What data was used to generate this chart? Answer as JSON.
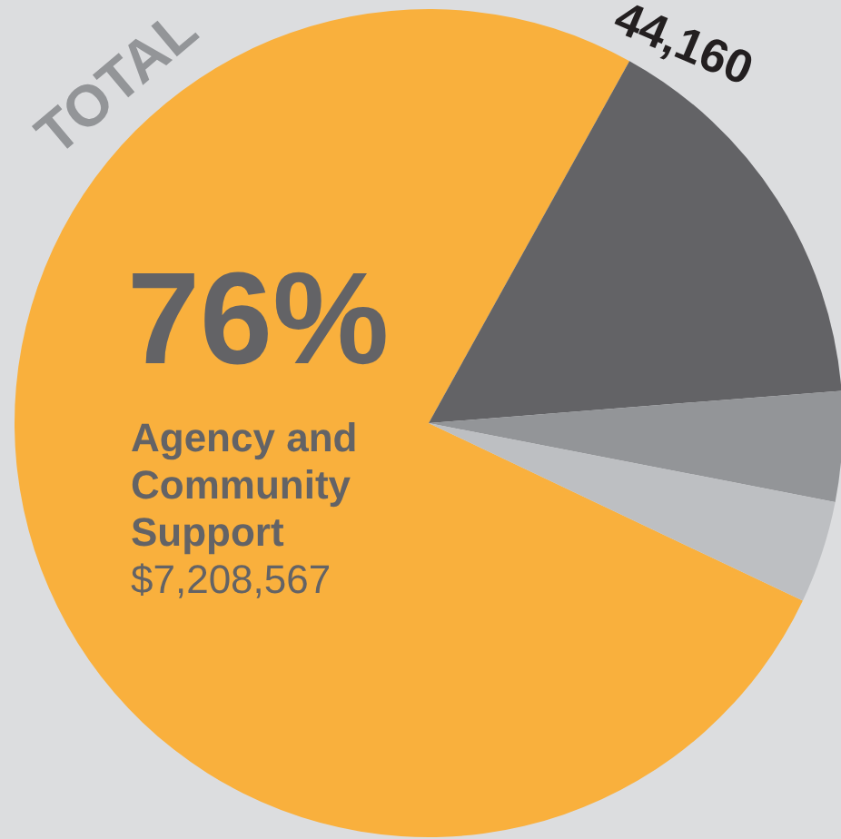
{
  "chart_data": {
    "type": "pie",
    "categories": [
      "Agency and Community Support",
      null,
      null,
      null
    ],
    "values": [
      76,
      15.7,
      4.3,
      4.0
    ],
    "colors": [
      "#f9b03d",
      "#636366",
      "#939598",
      "#bdbfc2"
    ],
    "value_labels": [
      "76%",
      null,
      null,
      null
    ],
    "annotations": [
      "TOTAL",
      "44,160",
      "$7,208,567"
    ]
  }
}
